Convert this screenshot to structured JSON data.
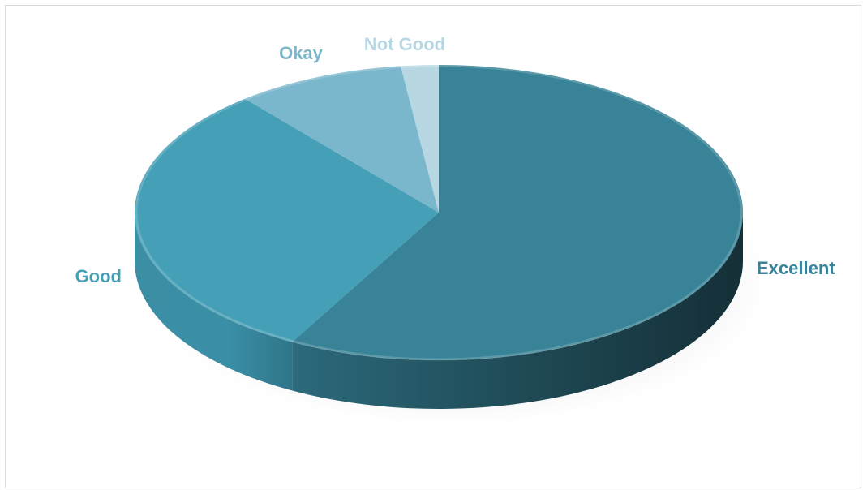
{
  "chart_data": {
    "type": "pie",
    "style": "3d",
    "title": "",
    "categories": [
      "Excellent",
      "Good",
      "Okay",
      "Not Good"
    ],
    "values": [
      58,
      31,
      9,
      2
    ],
    "colors": {
      "Excellent": "#388397",
      "Good": "#459fb6",
      "Okay": "#7bb7cc",
      "Not Good": "#b7d8e2"
    },
    "label_colors": {
      "Excellent": "#388397",
      "Good": "#459fb6",
      "Okay": "#7bb7cc",
      "Not Good": "#b7d8e2"
    },
    "legend": "none",
    "data_labels": "category names outside slices"
  }
}
